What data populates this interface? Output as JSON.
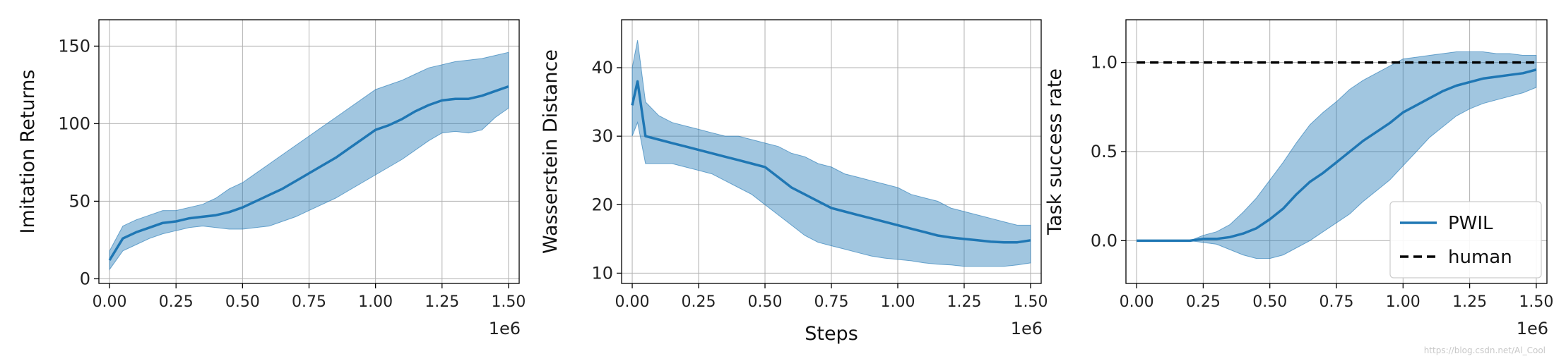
{
  "watermark": "https://blog.csdn.net/Al_Cool",
  "chart_data": [
    {
      "type": "area",
      "ylabel": "Imitation Returns",
      "xlabel": "",
      "x_multiplier_label": "1e6",
      "xlim": [
        -0.04,
        1.54
      ],
      "ylim": [
        -3,
        167
      ],
      "xticks": [
        0.0,
        0.25,
        0.5,
        0.75,
        1.0,
        1.25,
        1.5
      ],
      "xtick_labels": [
        "0.00",
        "0.25",
        "0.50",
        "0.75",
        "1.00",
        "1.25",
        "1.50"
      ],
      "yticks": [
        0,
        50,
        100,
        150
      ],
      "ytick_labels": [
        "0",
        "50",
        "100",
        "150"
      ],
      "grid": true,
      "series": [
        {
          "color": "#1f77b4",
          "x": [
            0.0,
            0.05,
            0.1,
            0.15,
            0.2,
            0.25,
            0.3,
            0.35,
            0.4,
            0.45,
            0.5,
            0.55,
            0.6,
            0.65,
            0.7,
            0.75,
            0.8,
            0.85,
            0.9,
            0.95,
            1.0,
            1.05,
            1.1,
            1.15,
            1.2,
            1.25,
            1.3,
            1.35,
            1.4,
            1.45,
            1.5
          ],
          "y": [
            12,
            26,
            30,
            33,
            36,
            37,
            39,
            40,
            41,
            43,
            46,
            50,
            54,
            58,
            63,
            68,
            73,
            78,
            84,
            90,
            96,
            99,
            103,
            108,
            112,
            115,
            116,
            116,
            118,
            121,
            124
          ],
          "band_low": [
            6,
            18,
            22,
            26,
            29,
            31,
            33,
            34,
            33,
            32,
            32,
            33,
            34,
            37,
            40,
            44,
            48,
            52,
            57,
            62,
            67,
            72,
            77,
            83,
            89,
            94,
            95,
            94,
            96,
            104,
            110
          ],
          "band_high": [
            18,
            34,
            38,
            41,
            44,
            44,
            46,
            48,
            52,
            58,
            62,
            68,
            74,
            80,
            86,
            92,
            98,
            104,
            110,
            116,
            122,
            125,
            128,
            132,
            136,
            138,
            140,
            141,
            142,
            144,
            146
          ]
        }
      ]
    },
    {
      "type": "area",
      "ylabel": "Wasserstein Distance",
      "xlabel": "Steps",
      "x_multiplier_label": "1e6",
      "xlim": [
        -0.04,
        1.54
      ],
      "ylim": [
        8.5,
        47
      ],
      "xticks": [
        0.0,
        0.25,
        0.5,
        0.75,
        1.0,
        1.25,
        1.5
      ],
      "xtick_labels": [
        "0.00",
        "0.25",
        "0.50",
        "0.75",
        "1.00",
        "1.25",
        "1.50"
      ],
      "yticks": [
        10,
        20,
        30,
        40
      ],
      "ytick_labels": [
        "10",
        "20",
        "30",
        "40"
      ],
      "grid": true,
      "series": [
        {
          "color": "#1f77b4",
          "x": [
            0.0,
            0.02,
            0.05,
            0.1,
            0.15,
            0.2,
            0.25,
            0.3,
            0.35,
            0.4,
            0.45,
            0.5,
            0.55,
            0.6,
            0.65,
            0.7,
            0.75,
            0.8,
            0.85,
            0.9,
            0.95,
            1.0,
            1.05,
            1.1,
            1.15,
            1.2,
            1.25,
            1.3,
            1.35,
            1.4,
            1.45,
            1.5
          ],
          "y": [
            34.5,
            38,
            30,
            29.5,
            29,
            28.5,
            28,
            27.5,
            27,
            26.5,
            26,
            25.5,
            24,
            22.5,
            21.5,
            20.5,
            19.5,
            19,
            18.5,
            18,
            17.5,
            17,
            16.5,
            16,
            15.5,
            15.2,
            15,
            14.8,
            14.6,
            14.5,
            14.5,
            14.8
          ],
          "band_low": [
            30,
            32,
            26,
            26,
            26,
            25.5,
            25,
            24.5,
            23.5,
            22.5,
            21.5,
            20,
            18.5,
            17,
            15.5,
            14.5,
            14,
            13.5,
            13,
            12.5,
            12.2,
            12,
            11.8,
            11.5,
            11.3,
            11.2,
            11,
            11,
            11,
            11,
            11.2,
            11.5
          ],
          "band_high": [
            40,
            44,
            35,
            33,
            32,
            31.5,
            31,
            30.5,
            30,
            30,
            29.5,
            29,
            28.5,
            27.5,
            27,
            26,
            25.5,
            24.5,
            24,
            23.5,
            23,
            22.5,
            21.5,
            21,
            20.5,
            19.5,
            19,
            18.5,
            18,
            17.5,
            17,
            17
          ]
        }
      ]
    },
    {
      "type": "area",
      "ylabel": "Task success rate",
      "xlabel": "",
      "x_multiplier_label": "1e6",
      "xlim": [
        -0.04,
        1.54
      ],
      "ylim": [
        -0.24,
        1.24
      ],
      "xticks": [
        0.0,
        0.25,
        0.5,
        0.75,
        1.0,
        1.25,
        1.5
      ],
      "xtick_labels": [
        "0.00",
        "0.25",
        "0.50",
        "0.75",
        "1.00",
        "1.25",
        "1.50"
      ],
      "yticks": [
        0.0,
        0.5,
        1.0
      ],
      "ytick_labels": [
        "0.0",
        "0.5",
        "1.0"
      ],
      "grid": true,
      "legend": {
        "position": "bottom-right",
        "entries": [
          "PWIL",
          "human"
        ]
      },
      "series": [
        {
          "name": "PWIL",
          "color": "#1f77b4",
          "x": [
            0.0,
            0.05,
            0.1,
            0.15,
            0.2,
            0.25,
            0.3,
            0.35,
            0.4,
            0.45,
            0.5,
            0.55,
            0.6,
            0.65,
            0.7,
            0.75,
            0.8,
            0.85,
            0.9,
            0.95,
            1.0,
            1.05,
            1.1,
            1.15,
            1.2,
            1.25,
            1.3,
            1.35,
            1.4,
            1.45,
            1.5
          ],
          "y": [
            0.0,
            0.0,
            0.0,
            0.0,
            0.0,
            0.01,
            0.01,
            0.02,
            0.04,
            0.07,
            0.12,
            0.18,
            0.26,
            0.33,
            0.38,
            0.44,
            0.5,
            0.56,
            0.61,
            0.66,
            0.72,
            0.76,
            0.8,
            0.84,
            0.87,
            0.89,
            0.91,
            0.92,
            0.93,
            0.94,
            0.96
          ],
          "band_low": [
            0.0,
            0.0,
            0.0,
            0.0,
            0.0,
            -0.01,
            -0.02,
            -0.05,
            -0.08,
            -0.1,
            -0.1,
            -0.08,
            -0.04,
            0.0,
            0.05,
            0.1,
            0.15,
            0.22,
            0.28,
            0.34,
            0.42,
            0.5,
            0.58,
            0.64,
            0.7,
            0.74,
            0.77,
            0.79,
            0.81,
            0.83,
            0.86
          ],
          "band_high": [
            0.0,
            0.0,
            0.0,
            0.0,
            0.0,
            0.03,
            0.05,
            0.09,
            0.16,
            0.24,
            0.34,
            0.44,
            0.55,
            0.65,
            0.72,
            0.78,
            0.85,
            0.9,
            0.94,
            0.98,
            1.02,
            1.03,
            1.04,
            1.05,
            1.06,
            1.06,
            1.06,
            1.05,
            1.05,
            1.04,
            1.04
          ]
        },
        {
          "name": "human",
          "color": "#000000",
          "dash": true,
          "x": [
            0.0,
            1.5
          ],
          "y": [
            1.0,
            1.0
          ]
        }
      ]
    }
  ]
}
